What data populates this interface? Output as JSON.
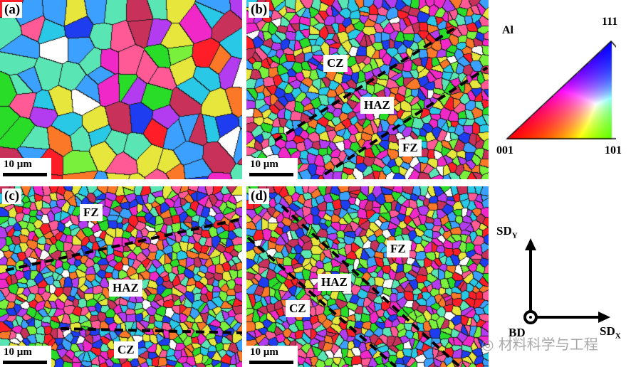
{
  "panels": [
    {
      "label": "(a)",
      "scale": "10 µm",
      "zones": []
    },
    {
      "label": "(b)",
      "scale": "10 µm",
      "zones": [
        "CZ",
        "HAZ",
        "FZ"
      ]
    },
    {
      "label": "(c)",
      "scale": "10 µm",
      "zones": [
        "FZ",
        "HAZ",
        "CZ"
      ]
    },
    {
      "label": "(d)",
      "scale": "10 µm",
      "zones": [
        "FZ",
        "HAZ",
        "CZ"
      ]
    }
  ],
  "ipf_legend": {
    "material": "Al",
    "corners": [
      "001",
      "101",
      "111"
    ]
  },
  "axes": {
    "y": "SD",
    "y_sub": "Y",
    "x": "SD",
    "x_sub": "X",
    "origin": "BD"
  },
  "watermark": "材料科学与工程"
}
